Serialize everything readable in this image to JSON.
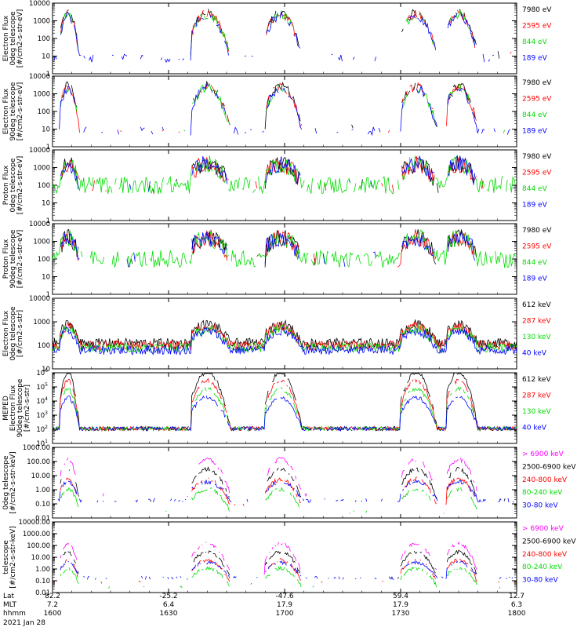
{
  "chart_data": {
    "type": "line",
    "colors": {
      "black": "#000000",
      "red": "#ff0000",
      "green": "#00dd00",
      "blue": "#0000ff",
      "magenta": "#ff00ff"
    },
    "panels": [
      {
        "ylabel": [
          "Electron Flux",
          "0deg telescope",
          "[#/cm2-s-str-eV]"
        ],
        "ylog": true,
        "ylim": [
          1,
          10000
        ],
        "yticks": [
          "1",
          "10",
          "100",
          "1000",
          "10000"
        ],
        "legend": [
          {
            "label": "7980 eV",
            "color": "#000000"
          },
          {
            "label": "2595 eV",
            "color": "#ff0000"
          },
          {
            "label": "844 eV",
            "color": "#00dd00"
          },
          {
            "label": "189 eV",
            "color": "#0000ff"
          }
        ]
      },
      {
        "ylabel": [
          "Electron Flux",
          "90deg telescope",
          "[#/cm2-s-str-eV]"
        ],
        "ylog": true,
        "ylim": [
          1,
          10000
        ],
        "yticks": [
          "1",
          "10",
          "100",
          "1000",
          "10000"
        ],
        "legend": [
          {
            "label": "7980 eV",
            "color": "#000000"
          },
          {
            "label": "2595 eV",
            "color": "#ff0000"
          },
          {
            "label": "844 eV",
            "color": "#00dd00"
          },
          {
            "label": "189 eV",
            "color": "#0000ff"
          }
        ]
      },
      {
        "ylabel": [
          "Proton Flux",
          "0deg telescope",
          "[#/cm2-s-str-eV]"
        ],
        "ylog": true,
        "ylim": [
          1,
          10000
        ],
        "yticks": [
          "1",
          "10",
          "100",
          "1000",
          "10000"
        ],
        "legend": [
          {
            "label": "7980 eV",
            "color": "#000000"
          },
          {
            "label": "2595 eV",
            "color": "#ff0000"
          },
          {
            "label": "844 eV",
            "color": "#00dd00"
          },
          {
            "label": "189 eV",
            "color": "#0000ff"
          }
        ]
      },
      {
        "ylabel": [
          "Proton Flux",
          "90deg telescope",
          "[#/cm2-s-str-eV]"
        ],
        "ylog": true,
        "ylim": [
          1,
          10000
        ],
        "yticks": [
          "1",
          "10",
          "100",
          "1000",
          "10000"
        ],
        "legend": [
          {
            "label": "7980 eV",
            "color": "#000000"
          },
          {
            "label": "2595 eV",
            "color": "#ff0000"
          },
          {
            "label": "844 eV",
            "color": "#00dd00"
          },
          {
            "label": "189 eV",
            "color": "#0000ff"
          }
        ]
      },
      {
        "ylabel": [
          "Electron Flux",
          "0deg telescope",
          "[#/cm2-s-str]"
        ],
        "ylog": true,
        "ylim": [
          10,
          10000
        ],
        "yticks": [
          "10",
          "100",
          "1000",
          "10000"
        ],
        "legend": [
          {
            "label": "612 keV",
            "color": "#000000"
          },
          {
            "label": "287 keV",
            "color": "#ff0000"
          },
          {
            "label": "130 keV",
            "color": "#00dd00"
          },
          {
            "label": "40 keV",
            "color": "#0000ff"
          }
        ]
      },
      {
        "ylabel": [
          "MEPED",
          "Electron Flux",
          "90deg telescope",
          "[#/cm2-s-str]"
        ],
        "ylog": true,
        "ylim": [
          10,
          1000000
        ],
        "yticks": [
          "10",
          "10",
          "10",
          "10",
          "10",
          "10"
        ],
        "ytick_exps": [
          "1",
          "2",
          "3",
          "4",
          "5",
          "6"
        ],
        "legend": [
          {
            "label": "612 keV",
            "color": "#000000"
          },
          {
            "label": "287 keV",
            "color": "#ff0000"
          },
          {
            "label": "130 keV",
            "color": "#00dd00"
          },
          {
            "label": "40 keV",
            "color": "#0000ff"
          }
        ]
      },
      {
        "ylabel": [
          "0deg telescope",
          "[#/cm2-s-str-keV]"
        ],
        "ylog": true,
        "ylim": [
          0.01,
          1000
        ],
        "yticks": [
          "0.01",
          "0.10",
          "1.00",
          "10.00",
          "100.00",
          "1000.00"
        ],
        "legend": [
          {
            "label": "> 6900 keV",
            "color": "#ff00ff"
          },
          {
            "label": "2500-6900 keV",
            "color": "#000000"
          },
          {
            "label": "240-800 keV",
            "color": "#ff0000"
          },
          {
            "label": "80-240 keV",
            "color": "#00dd00"
          },
          {
            "label": "30-80 keV",
            "color": "#0000ff"
          }
        ]
      },
      {
        "ylabel": [
          "telescope",
          "[#/cm2-s-str-keV]"
        ],
        "ylog": true,
        "ylim": [
          0.01,
          10000
        ],
        "yticks": [
          "0.01",
          "0.10",
          "1.00",
          "10.00",
          "100.00",
          "1000.00",
          "10000.00"
        ],
        "legend": [
          {
            "label": "> 6900 keV",
            "color": "#ff00ff"
          },
          {
            "label": "2500-6900 keV",
            "color": "#000000"
          },
          {
            "label": "240-800 keV",
            "color": "#ff0000"
          },
          {
            "label": "80-240 keV",
            "color": "#00dd00"
          },
          {
            "label": "30-80 keV",
            "color": "#0000ff"
          }
        ]
      }
    ],
    "xaxis": {
      "rows": [
        {
          "label": "Lat",
          "values": [
            "82.2",
            "-25.2",
            "-47.6",
            "59.4",
            "12.7"
          ]
        },
        {
          "label": "MLT",
          "values": [
            "7.2",
            "6.4",
            "17.9",
            "17.9",
            "6.3"
          ]
        },
        {
          "label": "hhmm",
          "values": [
            "1600",
            "1630",
            "1700",
            "1730",
            "1800"
          ]
        }
      ],
      "date": "2021 Jan 28",
      "time_minutes": [
        0,
        30,
        60,
        90,
        120
      ]
    },
    "passes": [
      {
        "start_min": 2,
        "end_min": 8,
        "peak_min": 4
      },
      {
        "start_min": 36,
        "end_min": 48,
        "peak_min": 40
      },
      {
        "start_min": 55,
        "end_min": 66,
        "peak_min": 59
      },
      {
        "start_min": 90,
        "end_min": 101,
        "peak_min": 94
      },
      {
        "start_min": 102,
        "end_min": 112,
        "peak_min": 105
      }
    ]
  }
}
